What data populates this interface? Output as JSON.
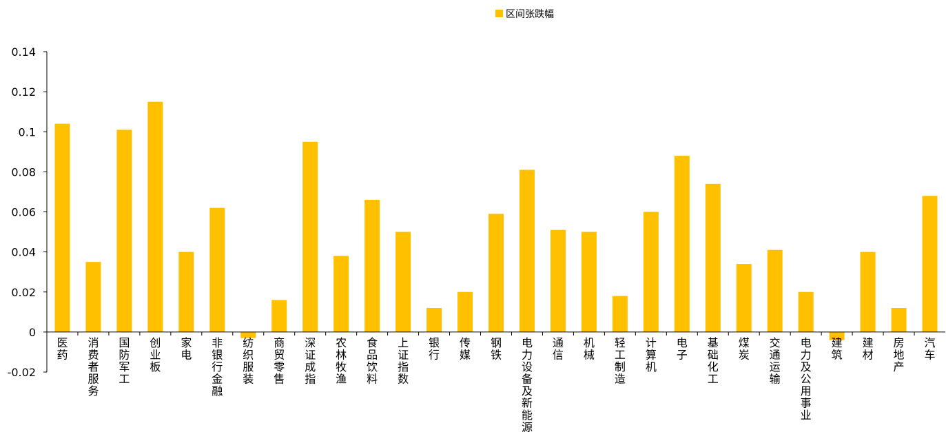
{
  "chart_data": {
    "type": "bar",
    "legend": {
      "label": "区间张跌幅",
      "position": "top-center"
    },
    "categories": [
      "医药",
      "消费者服务",
      "国防军工",
      "创业板",
      "家电",
      "非银行金融",
      "纺织服装",
      "商贸零售",
      "深证成指",
      "农林牧渔",
      "食品饮料",
      "上证指数",
      "银行",
      "传媒",
      "钢铁",
      "电力设备及新能源",
      "通信",
      "机械",
      "轻工制造",
      "计算机",
      "电子",
      "基础化工",
      "煤炭",
      "交通运输",
      "电力及公用事业",
      "建筑",
      "建材",
      "房地产",
      "汽车"
    ],
    "series": [
      {
        "name": "区间张跌幅",
        "color": "#FFC000",
        "values": [
          0.104,
          0.035,
          0.101,
          0.115,
          0.04,
          0.062,
          -0.003,
          0.016,
          0.095,
          0.038,
          0.066,
          0.05,
          0.012,
          0.02,
          0.059,
          0.081,
          0.051,
          0.05,
          0.018,
          0.06,
          0.088,
          0.074,
          0.034,
          0.041,
          0.02,
          -0.004,
          0.04,
          0.012,
          0.068
        ]
      }
    ],
    "ylim": [
      -0.02,
      0.14
    ],
    "yticks": [
      "-0.02",
      "0",
      "0.02",
      "0.04",
      "0.06",
      "0.08",
      "0.1",
      "0.12",
      "0.14"
    ],
    "grid": false
  }
}
